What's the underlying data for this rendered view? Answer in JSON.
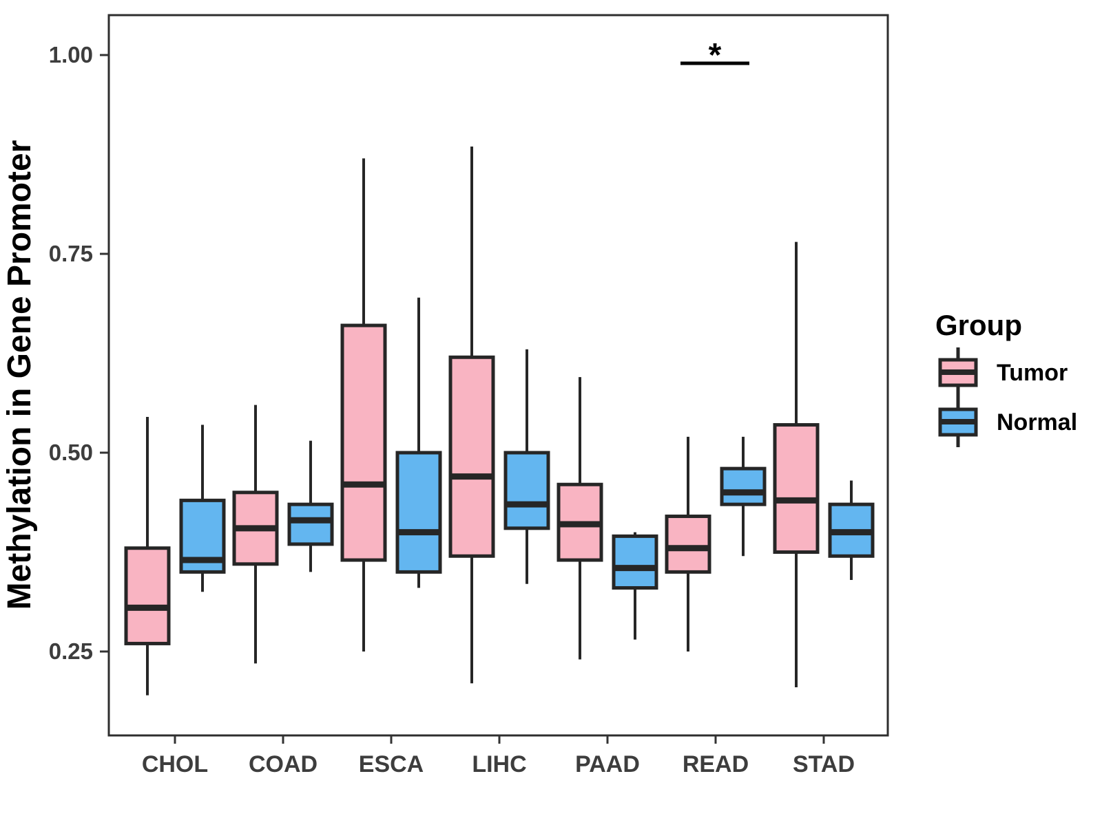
{
  "chart_data": {
    "type": "boxplot",
    "title": "",
    "xlabel": "",
    "ylabel": "Methylation in Gene Promoter",
    "categories": [
      "CHOL",
      "COAD",
      "ESCA",
      "LIHC",
      "PAAD",
      "READ",
      "STAD"
    ],
    "y_axis": {
      "tick_labels": [
        "0.25",
        "0.50",
        "0.75",
        "1.00"
      ],
      "tick_values": [
        0.25,
        0.5,
        0.75,
        1.0
      ],
      "shown_min": 0.145,
      "shown_max": 1.045,
      "grid": false
    },
    "legend": {
      "title": "Group",
      "position": "right",
      "entries": [
        {
          "label": "Tumor",
          "fill": "#F9B4C2"
        },
        {
          "label": "Normal",
          "fill": "#63B6F0"
        }
      ]
    },
    "colors": {
      "tumor_fill": "#F9B4C2",
      "normal_fill": "#63B6F0",
      "box_stroke": "#262626",
      "panel_border": "#2e2e2e",
      "tick_text": "#3d3d3d"
    },
    "series": [
      {
        "name": "Tumor",
        "fill": "#F9B4C2",
        "boxes": [
          {
            "category": "CHOL",
            "whisker_low": 0.195,
            "q1": 0.26,
            "median": 0.305,
            "q3": 0.38,
            "whisker_high": 0.545
          },
          {
            "category": "COAD",
            "whisker_low": 0.235,
            "q1": 0.36,
            "median": 0.405,
            "q3": 0.45,
            "whisker_high": 0.56
          },
          {
            "category": "ESCA",
            "whisker_low": 0.25,
            "q1": 0.365,
            "median": 0.46,
            "q3": 0.66,
            "whisker_high": 0.87
          },
          {
            "category": "LIHC",
            "whisker_low": 0.21,
            "q1": 0.37,
            "median": 0.47,
            "q3": 0.62,
            "whisker_high": 0.885
          },
          {
            "category": "PAAD",
            "whisker_low": 0.24,
            "q1": 0.365,
            "median": 0.41,
            "q3": 0.46,
            "whisker_high": 0.595
          },
          {
            "category": "READ",
            "whisker_low": 0.25,
            "q1": 0.35,
            "median": 0.38,
            "q3": 0.42,
            "whisker_high": 0.52
          },
          {
            "category": "STAD",
            "whisker_low": 0.205,
            "q1": 0.375,
            "median": 0.44,
            "q3": 0.535,
            "whisker_high": 0.765
          }
        ]
      },
      {
        "name": "Normal",
        "fill": "#63B6F0",
        "boxes": [
          {
            "category": "CHOL",
            "whisker_low": 0.325,
            "q1": 0.35,
            "median": 0.365,
            "q3": 0.44,
            "whisker_high": 0.535
          },
          {
            "category": "COAD",
            "whisker_low": 0.35,
            "q1": 0.385,
            "median": 0.415,
            "q3": 0.435,
            "whisker_high": 0.515
          },
          {
            "category": "ESCA",
            "whisker_low": 0.33,
            "q1": 0.35,
            "median": 0.4,
            "q3": 0.5,
            "whisker_high": 0.695
          },
          {
            "category": "LIHC",
            "whisker_low": 0.335,
            "q1": 0.405,
            "median": 0.435,
            "q3": 0.5,
            "whisker_high": 0.63
          },
          {
            "category": "PAAD",
            "whisker_low": 0.265,
            "q1": 0.33,
            "median": 0.355,
            "q3": 0.395,
            "whisker_high": 0.4
          },
          {
            "category": "READ",
            "whisker_low": 0.37,
            "q1": 0.435,
            "median": 0.45,
            "q3": 0.48,
            "whisker_high": 0.52
          },
          {
            "category": "STAD",
            "whisker_low": 0.34,
            "q1": 0.37,
            "median": 0.4,
            "q3": 0.435,
            "whisker_high": 0.465
          }
        ]
      }
    ],
    "annotation": {
      "symbol": "*",
      "over_category": "READ",
      "bar_value": 0.99,
      "meaning": "significance marker"
    }
  }
}
